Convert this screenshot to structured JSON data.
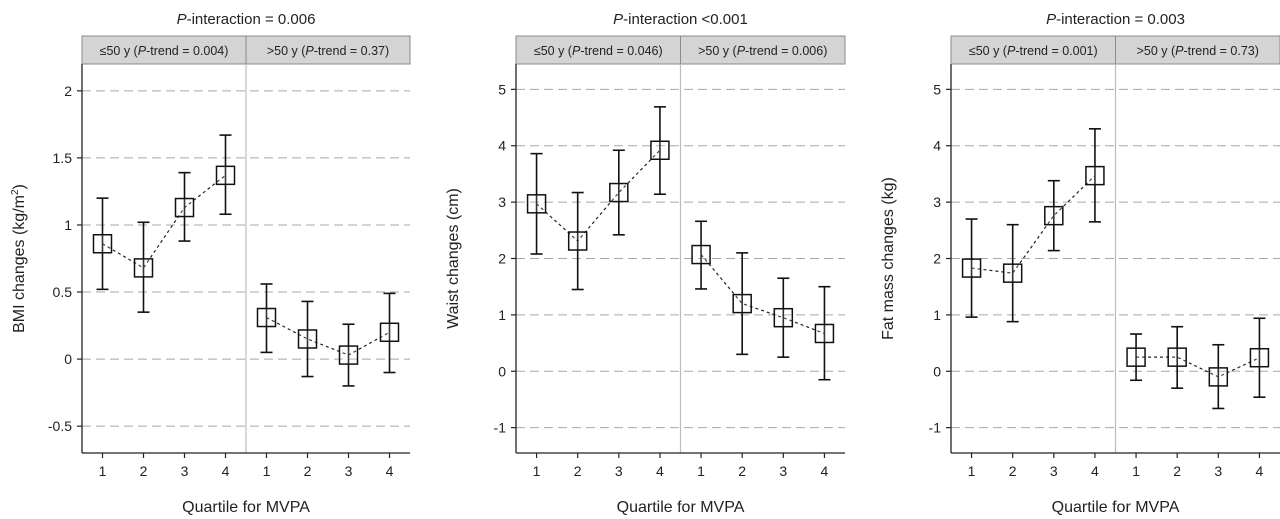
{
  "chart_data": [
    {
      "type": "scatter",
      "title_prefix": "P",
      "title_rest": "-interaction = 0.006",
      "panels": [
        {
          "prefix": "≤50 y (",
          "p": "P",
          "rest": "-trend = 0.004)"
        },
        {
          "prefix": ">50 y (",
          "p": "P",
          "rest": "-trend = 0.37)"
        }
      ],
      "ylabel": "BMI changes (kg/m",
      "ylabel_sup": "2",
      "ylabel_end": ")",
      "xlabel": "Quartile for MVPA",
      "ylim": [
        -0.7,
        2.2
      ],
      "yticks": [
        -0.5,
        0,
        0.5,
        1,
        1.5,
        2
      ],
      "ytick_labels": [
        "-0.5",
        "0",
        "0.5",
        "1",
        "1.5",
        "2"
      ],
      "x_ticks": [
        "1",
        "2",
        "3",
        "4"
      ],
      "series": [
        {
          "values": [
            0.86,
            0.68,
            1.13,
            1.37
          ],
          "lower": [
            0.52,
            0.35,
            0.88,
            1.08
          ],
          "upper": [
            1.2,
            1.02,
            1.39,
            1.67
          ]
        },
        {
          "values": [
            0.31,
            0.15,
            0.03,
            0.2
          ],
          "lower": [
            0.05,
            -0.13,
            -0.2,
            -0.1
          ],
          "upper": [
            0.56,
            0.43,
            0.26,
            0.49
          ]
        }
      ]
    },
    {
      "type": "scatter",
      "title_prefix": "P",
      "title_rest": "-interaction <0.001",
      "panels": [
        {
          "prefix": "≤50 y (",
          "p": "P",
          "rest": "-trend = 0.046)"
        },
        {
          "prefix": ">50 y (",
          "p": "P",
          "rest": "-trend = 0.006)"
        }
      ],
      "ylabel": "Waist changes (cm)",
      "ylabel_sup": "",
      "ylabel_end": "",
      "xlabel": "Quartile for MVPA",
      "ylim": [
        -1.45,
        5.45
      ],
      "yticks": [
        -1,
        0,
        1,
        2,
        3,
        4,
        5
      ],
      "ytick_labels": [
        "-1",
        "0",
        "1",
        "2",
        "3",
        "4",
        "5"
      ],
      "x_ticks": [
        "1",
        "2",
        "3",
        "4"
      ],
      "series": [
        {
          "values": [
            2.97,
            2.31,
            3.17,
            3.92
          ],
          "lower": [
            2.08,
            1.45,
            2.42,
            3.14
          ],
          "upper": [
            3.86,
            3.17,
            3.92,
            4.69
          ]
        },
        {
          "values": [
            2.07,
            1.2,
            0.95,
            0.67
          ],
          "lower": [
            1.46,
            0.3,
            0.25,
            -0.15
          ],
          "upper": [
            2.66,
            2.1,
            1.65,
            1.5
          ]
        }
      ]
    },
    {
      "type": "scatter",
      "title_prefix": "P",
      "title_rest": "-interaction = 0.003",
      "panels": [
        {
          "prefix": "≤50 y (",
          "p": "P",
          "rest": "-trend = 0.001)"
        },
        {
          "prefix": ">50 y (",
          "p": "P",
          "rest": "-trend = 0.73)"
        }
      ],
      "ylabel": "Fat mass changes (kg)",
      "ylabel_sup": "",
      "ylabel_end": "",
      "xlabel": "Quartile for MVPA",
      "ylim": [
        -1.45,
        5.45
      ],
      "yticks": [
        -1,
        0,
        1,
        2,
        3,
        4,
        5
      ],
      "ytick_labels": [
        "-1",
        "0",
        "1",
        "2",
        "3",
        "4",
        "5"
      ],
      "x_ticks": [
        "1",
        "2",
        "3",
        "4"
      ],
      "series": [
        {
          "values": [
            1.83,
            1.74,
            2.76,
            3.47
          ],
          "lower": [
            0.96,
            0.88,
            2.14,
            2.65
          ],
          "upper": [
            2.7,
            2.6,
            3.38,
            4.3
          ]
        },
        {
          "values": [
            0.25,
            0.25,
            -0.1,
            0.24
          ],
          "lower": [
            -0.16,
            -0.3,
            -0.66,
            -0.46
          ],
          "upper": [
            0.66,
            0.79,
            0.47,
            0.94
          ]
        }
      ]
    }
  ]
}
